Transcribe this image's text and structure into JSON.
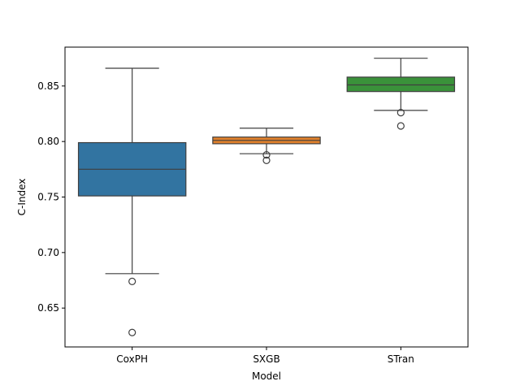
{
  "chart_data": {
    "type": "boxplot",
    "title": "",
    "xlabel": "Model",
    "ylabel": "C-Index",
    "ylim": [
      0.615,
      0.885
    ],
    "yticks": [
      0.65,
      0.7,
      0.75,
      0.8,
      0.85
    ],
    "ytick_labels": [
      "0.65",
      "0.70",
      "0.75",
      "0.80",
      "0.85"
    ],
    "grid": false,
    "categories": [
      "CoxPH",
      "SXGB",
      "STran"
    ],
    "series": [
      {
        "category": "CoxPH",
        "color": "#3274a1",
        "whisker_low": 0.681,
        "q1": 0.751,
        "median": 0.775,
        "q3": 0.799,
        "whisker_high": 0.866,
        "outliers": [
          0.674,
          0.628
        ]
      },
      {
        "category": "SXGB",
        "color": "#e1812c",
        "whisker_low": 0.789,
        "q1": 0.798,
        "median": 0.801,
        "q3": 0.804,
        "whisker_high": 0.812,
        "outliers": [
          0.788,
          0.783
        ]
      },
      {
        "category": "STran",
        "color": "#3a923a",
        "whisker_low": 0.828,
        "q1": 0.845,
        "median": 0.851,
        "q3": 0.858,
        "whisker_high": 0.875,
        "outliers": [
          0.826,
          0.814
        ]
      }
    ]
  }
}
